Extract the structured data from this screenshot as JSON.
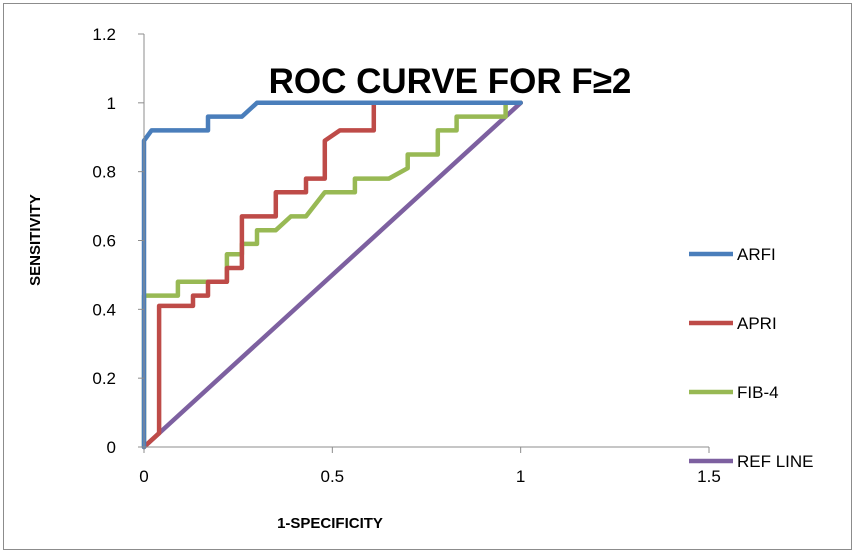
{
  "chart_data": {
    "type": "line",
    "title": "ROC CURVE FOR F≥2",
    "xlabel": "1-SPECIFICITY",
    "ylabel": "SENSITIVITY",
    "xlim": [
      0,
      1.5
    ],
    "ylim": [
      0,
      1.2
    ],
    "x_ticks": [
      "0",
      "0.5",
      "1",
      "1.5"
    ],
    "y_ticks": [
      "0",
      "0.2",
      "0.4",
      "0.6",
      "0.8",
      "1",
      "1.2"
    ],
    "x_tick_values": [
      0,
      0.5,
      1,
      1.5
    ],
    "y_tick_values": [
      0,
      0.2,
      0.4,
      0.6,
      0.8,
      1,
      1.2
    ],
    "grid": false,
    "legend_position": "right",
    "series": [
      {
        "name": "ARFI",
        "color": "#4a7ebb",
        "points": [
          [
            0,
            0
          ],
          [
            0,
            0.89
          ],
          [
            0.02,
            0.92
          ],
          [
            0.17,
            0.92
          ],
          [
            0.17,
            0.96
          ],
          [
            0.26,
            0.96
          ],
          [
            0.3,
            1.0
          ],
          [
            0.61,
            1.0
          ],
          [
            1.0,
            1.0
          ]
        ]
      },
      {
        "name": "APRI",
        "color": "#be4b48",
        "points": [
          [
            0,
            0
          ],
          [
            0.04,
            0.04
          ],
          [
            0.04,
            0.41
          ],
          [
            0.13,
            0.41
          ],
          [
            0.13,
            0.44
          ],
          [
            0.17,
            0.44
          ],
          [
            0.17,
            0.48
          ],
          [
            0.22,
            0.48
          ],
          [
            0.22,
            0.52
          ],
          [
            0.26,
            0.52
          ],
          [
            0.26,
            0.67
          ],
          [
            0.35,
            0.67
          ],
          [
            0.35,
            0.74
          ],
          [
            0.43,
            0.74
          ],
          [
            0.43,
            0.78
          ],
          [
            0.48,
            0.78
          ],
          [
            0.48,
            0.89
          ],
          [
            0.52,
            0.92
          ],
          [
            0.61,
            0.92
          ],
          [
            0.61,
            1.0
          ],
          [
            1.0,
            1.0
          ]
        ]
      },
      {
        "name": "FIB-4",
        "color": "#98b954",
        "points": [
          [
            0,
            0
          ],
          [
            0,
            0.44
          ],
          [
            0.09,
            0.44
          ],
          [
            0.09,
            0.48
          ],
          [
            0.22,
            0.48
          ],
          [
            0.22,
            0.56
          ],
          [
            0.26,
            0.56
          ],
          [
            0.26,
            0.59
          ],
          [
            0.3,
            0.59
          ],
          [
            0.3,
            0.63
          ],
          [
            0.35,
            0.63
          ],
          [
            0.39,
            0.67
          ],
          [
            0.43,
            0.67
          ],
          [
            0.48,
            0.74
          ],
          [
            0.56,
            0.74
          ],
          [
            0.56,
            0.78
          ],
          [
            0.65,
            0.78
          ],
          [
            0.7,
            0.81
          ],
          [
            0.7,
            0.85
          ],
          [
            0.78,
            0.85
          ],
          [
            0.78,
            0.92
          ],
          [
            0.83,
            0.92
          ],
          [
            0.83,
            0.96
          ],
          [
            0.96,
            0.96
          ],
          [
            0.96,
            1.0
          ],
          [
            1.0,
            1.0
          ]
        ]
      },
      {
        "name": "REF LINE",
        "color": "#7d60a0",
        "points": [
          [
            0,
            0
          ],
          [
            1.0,
            1.0
          ]
        ]
      }
    ]
  }
}
